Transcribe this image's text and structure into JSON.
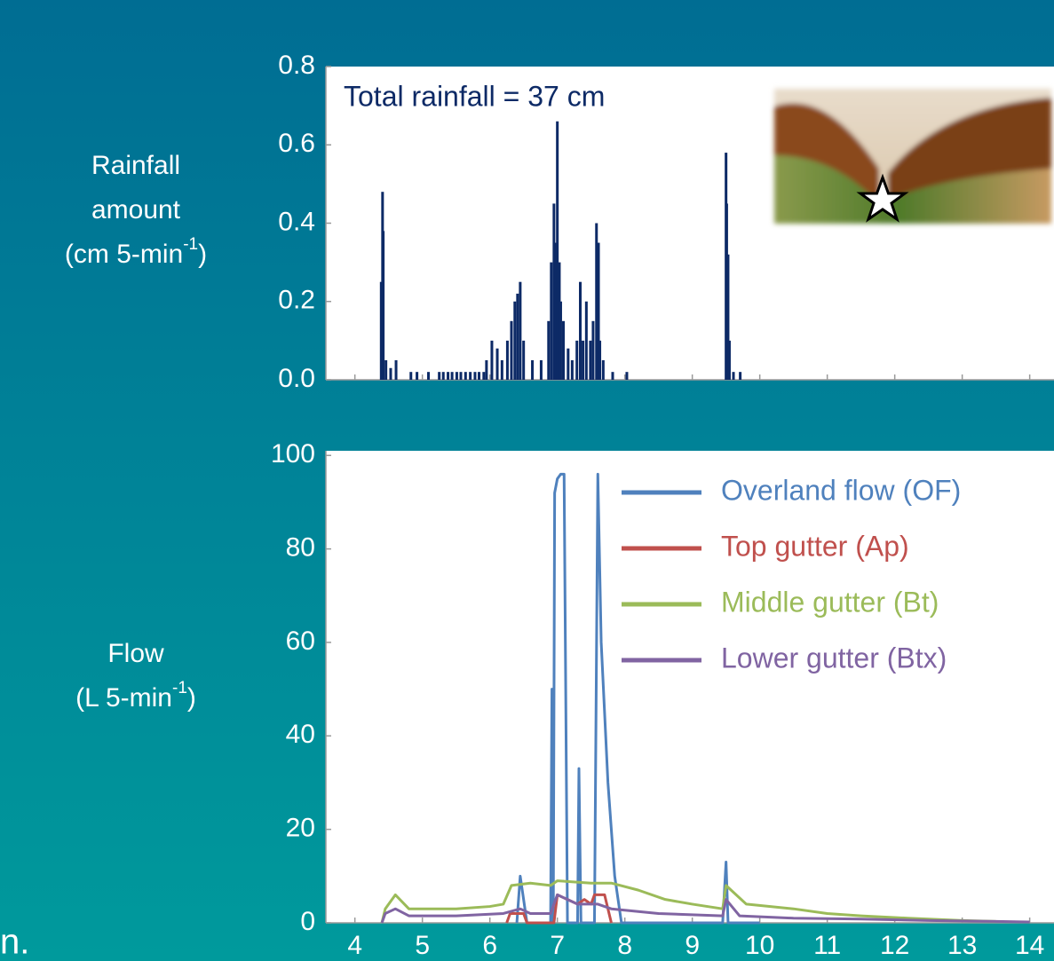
{
  "fragment": "n.",
  "chart_data": [
    {
      "type": "bar",
      "annotation": "Total rainfall = 37 cm",
      "y_label": {
        "lines": [
          "Rainfall",
          "amount"
        ],
        "unit": "(cm 5-min",
        "sup": "-1",
        "close": ")"
      },
      "color": "#0d2a66",
      "x": [
        4.39,
        4.41,
        4.42,
        4.46,
        4.53,
        4.61,
        4.83,
        4.92,
        5.09,
        5.25,
        5.31,
        5.38,
        5.44,
        5.51,
        5.57,
        5.64,
        5.71,
        5.78,
        5.84,
        5.91,
        5.95,
        6.03,
        6.11,
        6.18,
        6.26,
        6.32,
        6.37,
        6.41,
        6.45,
        6.5,
        6.63,
        6.76,
        6.87,
        6.91,
        6.95,
        6.97,
        7.0,
        7.03,
        7.05,
        7.09,
        7.16,
        7.22,
        7.29,
        7.34,
        7.38,
        7.43,
        7.49,
        7.53,
        7.58,
        7.61,
        7.63,
        7.68,
        7.82,
        8.03,
        9.5,
        9.51,
        9.53,
        9.55,
        9.61,
        9.71
      ],
      "values": [
        0.25,
        0.48,
        0.38,
        0.05,
        0.03,
        0.05,
        0.02,
        0.02,
        0.02,
        0.02,
        0.02,
        0.02,
        0.02,
        0.02,
        0.02,
        0.02,
        0.02,
        0.02,
        0.02,
        0.02,
        0.05,
        0.1,
        0.08,
        0.05,
        0.1,
        0.15,
        0.2,
        0.22,
        0.25,
        0.1,
        0.05,
        0.05,
        0.15,
        0.3,
        0.45,
        0.35,
        0.66,
        0.3,
        0.2,
        0.15,
        0.08,
        0.05,
        0.1,
        0.25,
        0.1,
        0.2,
        0.1,
        0.15,
        0.4,
        0.35,
        0.1,
        0.05,
        0.02,
        0.02,
        0.58,
        0.45,
        0.32,
        0.1,
        0.02,
        0.02
      ],
      "xlim": [
        3.57,
        14.36
      ],
      "xticks": [
        4,
        5,
        6,
        7,
        8,
        9,
        10,
        11,
        12,
        13,
        14
      ],
      "ylim": [
        0,
        0.8
      ],
      "yticks": [
        {
          "value": 0,
          "label": "0.0"
        },
        0.2,
        0.4,
        0.6,
        0.8
      ]
    },
    {
      "type": "line",
      "y_label": {
        "lines": [
          "Flow"
        ],
        "unit": "(L 5-min",
        "sup": "-1",
        "close": ")"
      },
      "legend": "top-right",
      "series": [
        {
          "name": "Overland flow (OF)",
          "color": "#4f81bd",
          "x": [
            6.4,
            6.45,
            6.55,
            6.9,
            6.92,
            6.94,
            6.96,
            7.0,
            7.05,
            7.1,
            7.15,
            7.3,
            7.32,
            7.35,
            7.55,
            7.6,
            7.65,
            7.75,
            7.85,
            7.95,
            9.45,
            9.5,
            9.53,
            10
          ],
          "values": [
            0,
            10,
            0,
            0,
            50,
            0,
            92,
            95,
            96,
            96,
            0,
            0,
            33,
            0,
            0,
            96,
            60,
            30,
            10,
            0,
            0,
            13,
            0,
            0
          ]
        },
        {
          "name": "Top gutter (Ap)",
          "color": "#c0504d",
          "x": [
            6.25,
            6.3,
            6.5,
            6.55,
            6.95,
            7.0,
            7.3,
            7.4,
            7.5,
            7.55,
            7.7,
            7.8
          ],
          "values": [
            0,
            2,
            2,
            0,
            0,
            6,
            4,
            5,
            4,
            6,
            6,
            0
          ]
        },
        {
          "name": "Middle gutter (Bt)",
          "color": "#9bbb59",
          "x": [
            4.4,
            4.45,
            4.6,
            4.8,
            5.5,
            6.0,
            6.2,
            6.32,
            6.6,
            6.9,
            7.0,
            7.5,
            7.8,
            8.2,
            8.6,
            9.0,
            9.45,
            9.5,
            9.8,
            10.5,
            11.0,
            11.5,
            12.2,
            13.0,
            13.5
          ],
          "values": [
            0,
            3,
            6,
            3,
            3,
            3.5,
            4,
            8,
            8.5,
            8,
            9,
            8.5,
            8.5,
            7,
            5,
            4,
            3,
            8,
            4,
            3,
            2,
            1.5,
            1,
            0.5,
            0.3
          ]
        },
        {
          "name": "Lower gutter (Btx)",
          "color": "#8064a2",
          "x": [
            4.4,
            4.45,
            4.6,
            4.8,
            5.5,
            6.2,
            6.45,
            6.6,
            6.9,
            7.0,
            7.3,
            7.6,
            7.8,
            8.5,
            9.45,
            9.5,
            9.7,
            10.5,
            11.5,
            12.5,
            13.5,
            14.0
          ],
          "values": [
            0,
            2,
            3,
            1.5,
            1.5,
            2,
            3,
            2,
            2,
            6,
            4,
            4,
            3,
            2,
            1.5,
            5,
            1.5,
            1,
            0.8,
            0.5,
            0.3,
            0.2
          ]
        }
      ],
      "xlim": [
        3.57,
        14.36
      ],
      "xticks": [
        4,
        5,
        6,
        7,
        8,
        9,
        10,
        11,
        12,
        13,
        14
      ],
      "ylim": [
        0,
        101
      ],
      "yticks": [
        0,
        20,
        40,
        60,
        80,
        100
      ]
    }
  ]
}
